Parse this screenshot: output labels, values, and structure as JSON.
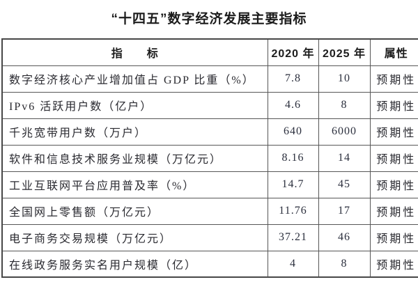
{
  "title": "“十四五”数字经济发展主要指标",
  "table": {
    "headers": [
      "指　　标",
      "2020 年",
      "2025 年",
      "属性"
    ],
    "rows": [
      [
        "数字经济核心产业增加值占 GDP 比重（%）",
        "7.8",
        "10",
        "预期性"
      ],
      [
        "IPv6 活跃用户数（亿户）",
        "4.6",
        "8",
        "预期性"
      ],
      [
        "千兆宽带用户数（万户）",
        "640",
        "6000",
        "预期性"
      ],
      [
        "软件和信息技术服务业规模（万亿元）",
        "8.16",
        "14",
        "预期性"
      ],
      [
        "工业互联网平台应用普及率（%）",
        "14.7",
        "45",
        "预期性"
      ],
      [
        "全国网上零售额（万亿元）",
        "11.76",
        "17",
        "预期性"
      ],
      [
        "电子商务交易规模（万亿元）",
        "37.21",
        "46",
        "预期性"
      ],
      [
        "在线政务服务实名用户规模（亿）",
        "4",
        "8",
        "预期性"
      ]
    ]
  },
  "colors": {
    "border_outer": "#474747",
    "border_inner": "#565656",
    "text": "#222226",
    "background": "#ffffff"
  }
}
